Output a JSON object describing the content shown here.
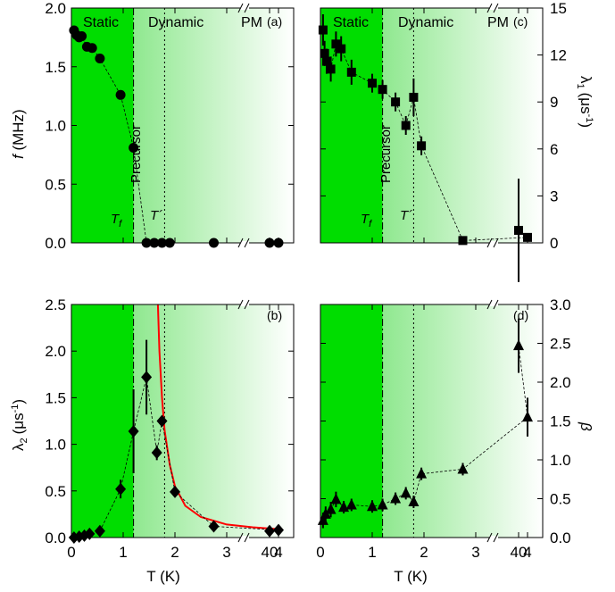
{
  "colors": {
    "static_fill": "#00dd00",
    "dynamic_fill_start": "#8fe88f",
    "dynamic_fill_end": "#ffffff",
    "fit_curve": "#ff0000",
    "marker": "#000000"
  },
  "labels": {
    "static": "Static",
    "dynamic": "Dynamic",
    "pm": "PM",
    "precursor": "Precursor",
    "tf": "T",
    "tf_sub": "f",
    "tprime": "T´"
  },
  "chart_data": [
    {
      "id": "a",
      "tag": "(a)",
      "type": "scatter",
      "ylabel": "f (MHz)",
      "ylabel_italic_part": "f",
      "ylabel_rest": " (MHz)",
      "yaxis_side": "left",
      "ylim": [
        0,
        2.0
      ],
      "yticks": [
        "0.0",
        "0.5",
        "1.0",
        "1.5",
        "2.0"
      ],
      "ytick_values": [
        0,
        0.5,
        1.0,
        1.5,
        2.0
      ],
      "xticks": [],
      "marker": "circle",
      "x": [
        0.05,
        0.1,
        0.15,
        0.2,
        0.3,
        0.4,
        0.55,
        0.95,
        1.2,
        1.45,
        1.6,
        1.75,
        1.9,
        2.75,
        4,
        40
      ],
      "y": [
        1.81,
        1.77,
        1.75,
        1.76,
        1.67,
        1.66,
        1.57,
        1.26,
        0.81,
        0.0,
        0.0,
        0.0,
        0.0,
        0.0,
        0.0,
        0.0
      ],
      "yerr": [],
      "fit": null
    },
    {
      "id": "c",
      "tag": "(c)",
      "type": "scatter",
      "ylabel": "λ1 (μs-1)",
      "ylabel_symbol": "λ",
      "ylabel_sub": "1",
      "ylabel_unit": "(μs",
      "ylabel_sup": "-1",
      "ylabel_close": ")",
      "yaxis_side": "right",
      "ylim": [
        0,
        15
      ],
      "yticks": [
        "0",
        "3",
        "6",
        "9",
        "12",
        "15"
      ],
      "ytick_values": [
        0,
        3,
        6,
        9,
        12,
        15
      ],
      "xticks": [],
      "marker": "square",
      "x": [
        0.05,
        0.08,
        0.12,
        0.2,
        0.3,
        0.4,
        0.6,
        1.0,
        1.2,
        1.45,
        1.65,
        1.8,
        1.95,
        2.75,
        4,
        40
      ],
      "y": [
        13.6,
        12.1,
        11.6,
        11.1,
        12.7,
        12.4,
        10.9,
        10.2,
        9.8,
        9.0,
        7.5,
        9.3,
        6.2,
        0.15,
        0.35,
        0.8
      ],
      "yerr": [
        1.0,
        0.8,
        0.8,
        0.8,
        0.8,
        0.8,
        0.8,
        0.6,
        0.6,
        0.6,
        0.6,
        1.2,
        0.6,
        0.2,
        0.2,
        3.3
      ],
      "fit": null
    },
    {
      "id": "b",
      "tag": "(b)",
      "type": "scatter",
      "ylabel": "λ2 (μs-1)",
      "ylabel_symbol": "λ",
      "ylabel_sub": "2",
      "ylabel_unit": "(μs",
      "ylabel_sup": "-1",
      "ylabel_close": ")",
      "yaxis_side": "left",
      "ylim": [
        0,
        2.5
      ],
      "yticks": [
        "0.0",
        "0.5",
        "1.0",
        "1.5",
        "2.0",
        "2.5"
      ],
      "ytick_values": [
        0,
        0.5,
        1.0,
        1.5,
        2.0,
        2.5
      ],
      "xticks": [
        "0",
        "1",
        "2",
        "3",
        "4",
        "40"
      ],
      "xtick_values": [
        0,
        1,
        2,
        3,
        4,
        40
      ],
      "xlabel": "T (K)",
      "marker": "diamond",
      "x": [
        0.05,
        0.15,
        0.25,
        0.35,
        0.55,
        0.95,
        1.2,
        1.45,
        1.65,
        1.75,
        2.0,
        2.75,
        4,
        40
      ],
      "y": [
        0.0,
        0.01,
        0.02,
        0.04,
        0.07,
        0.52,
        1.14,
        1.72,
        0.91,
        1.25,
        0.49,
        0.12,
        0.08,
        0.07
      ],
      "yerr": [
        0,
        0,
        0,
        0,
        0,
        0.1,
        0.45,
        0.4,
        0.08,
        0,
        0,
        0.05,
        0,
        0
      ],
      "fit": {
        "x": [
          1.67,
          1.7,
          1.75,
          1.8,
          1.9,
          2.0,
          2.2,
          2.5,
          3.0,
          3.5,
          4.0
        ],
        "y": [
          2.5,
          2.0,
          1.5,
          1.15,
          0.78,
          0.55,
          0.34,
          0.22,
          0.14,
          0.11,
          0.09
        ]
      }
    },
    {
      "id": "d",
      "tag": "(d)",
      "type": "scatter",
      "ylabel": "β",
      "yaxis_side": "right",
      "ylim": [
        0,
        3.0
      ],
      "yticks": [
        "0.0",
        "0.5",
        "1.0",
        "1.5",
        "2.0",
        "2.5",
        "3.0"
      ],
      "ytick_values": [
        0,
        0.5,
        1.0,
        1.5,
        2.0,
        2.5,
        3.0
      ],
      "xticks": [
        "0",
        "1",
        "2",
        "3",
        "4",
        "40"
      ],
      "xtick_values": [
        0,
        1,
        2,
        3,
        4,
        40
      ],
      "xlabel": "T (K)",
      "marker": "triangle",
      "x": [
        0.05,
        0.1,
        0.2,
        0.3,
        0.45,
        0.6,
        1.0,
        1.2,
        1.45,
        1.65,
        1.8,
        1.95,
        2.75,
        4,
        40
      ],
      "y": [
        0.22,
        0.3,
        0.36,
        0.49,
        0.39,
        0.42,
        0.4,
        0.42,
        0.5,
        0.57,
        0.46,
        0.82,
        0.88,
        1.55,
        2.47
      ],
      "yerr": [
        0.1,
        0.1,
        0.1,
        0.1,
        0.08,
        0.08,
        0.08,
        0.08,
        0.08,
        0.08,
        0.08,
        0.08,
        0.08,
        0.25,
        0.35
      ],
      "fit": null
    }
  ]
}
